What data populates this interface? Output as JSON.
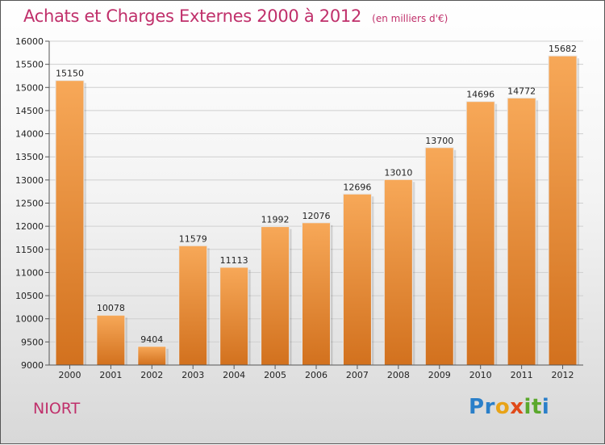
{
  "chart_data": {
    "type": "bar",
    "title": "Achats et Charges Externes 2000 à 2012",
    "unit": "(en milliers d'€)",
    "categories": [
      "2000",
      "2001",
      "2002",
      "2003",
      "2004",
      "2005",
      "2006",
      "2007",
      "2008",
      "2009",
      "2010",
      "2011",
      "2012"
    ],
    "values": [
      15150,
      10078,
      9404,
      11579,
      11113,
      11992,
      12076,
      12696,
      13010,
      13700,
      14696,
      14772,
      15682
    ],
    "ylim": [
      9000,
      16000
    ],
    "yticks": [
      9000,
      9500,
      10000,
      10500,
      11000,
      11500,
      12000,
      12500,
      13000,
      13500,
      14000,
      14500,
      15000,
      15500,
      16000
    ],
    "grid": true,
    "bar_color_top": "#f7a858",
    "bar_color_bottom": "#d2711e"
  },
  "commune": "NIORT",
  "logo": {
    "letters": [
      "P",
      "r",
      "o",
      "x",
      "i",
      "t",
      "i"
    ],
    "colors": [
      "#2a7fc9",
      "#2a7fc9",
      "#e8a317",
      "#e04a1a",
      "#5aa82c",
      "#5aa82c",
      "#2a7fc9"
    ]
  }
}
